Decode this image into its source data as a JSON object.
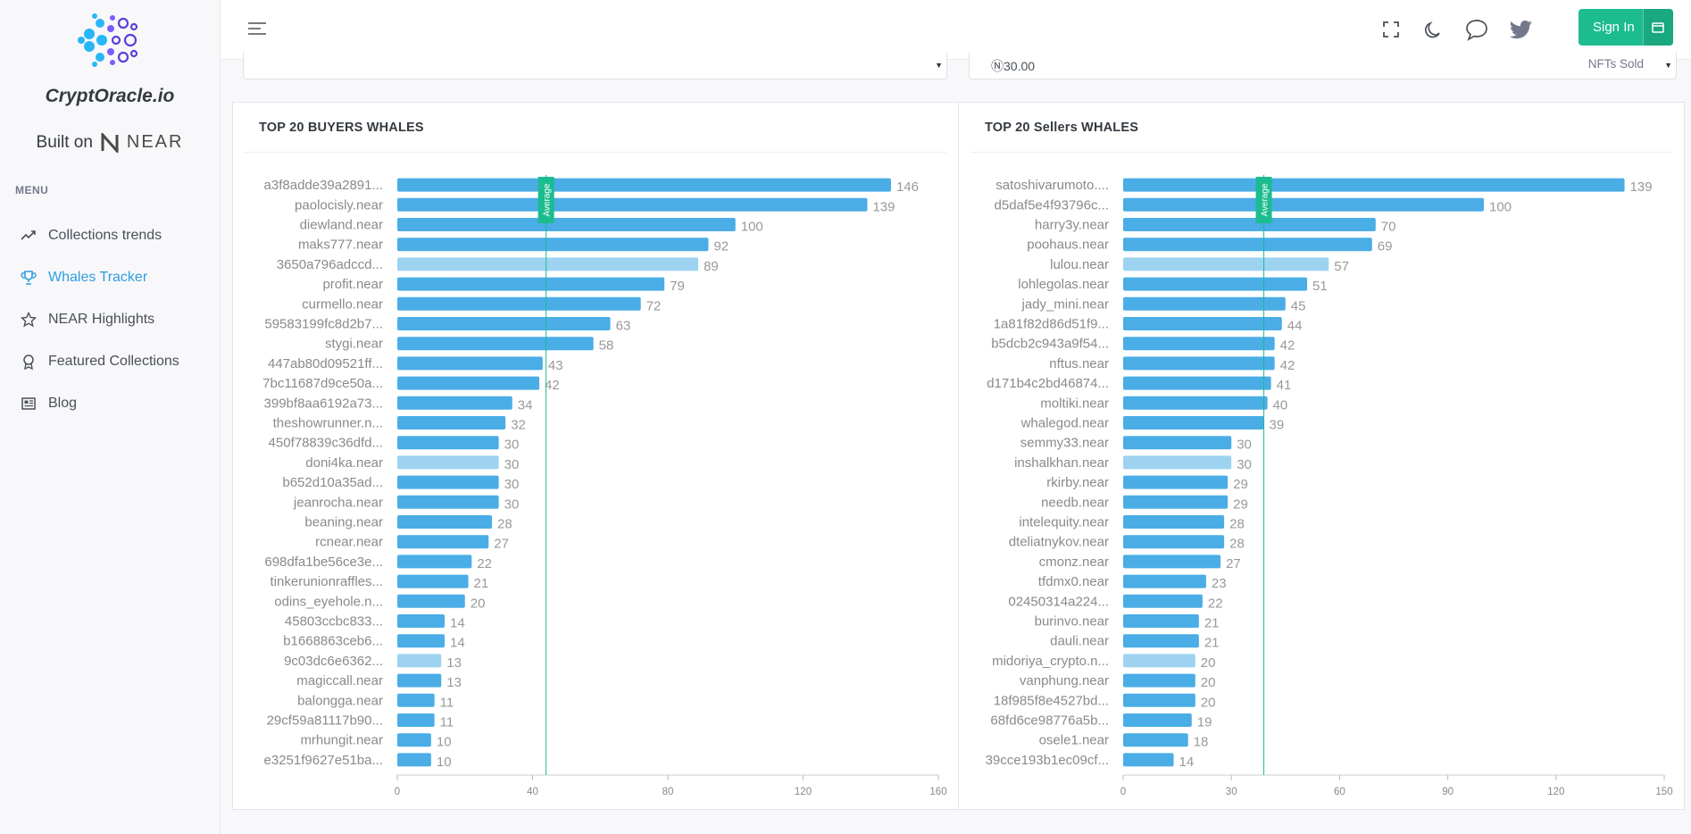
{
  "brand": {
    "name": "CryptOracle.io",
    "built_on": "Built on",
    "near_logo_text": "NEAR"
  },
  "menu": {
    "title": "MENU",
    "items": [
      {
        "label": "Collections trends",
        "icon": "trend-icon",
        "active": false
      },
      {
        "label": "Whales Tracker",
        "icon": "trophy-icon",
        "active": true
      },
      {
        "label": "NEAR Highlights",
        "icon": "star-icon",
        "active": false
      },
      {
        "label": "Featured Collections",
        "icon": "award-icon",
        "active": false
      },
      {
        "label": "Blog",
        "icon": "newspaper-icon",
        "active": false
      }
    ]
  },
  "topbar": {
    "signin_label": "Sign In"
  },
  "filters": {
    "right_value": "Ⓝ30.00",
    "right_select": "NFTs Sold"
  },
  "colors": {
    "bar": "#4aade6",
    "bar_highlight": "#9dd3f1",
    "average": "#1cbc8f",
    "accent": "#2f9ede"
  },
  "chart_data": [
    {
      "type": "bar",
      "orientation": "horizontal",
      "title": "TOP 20 BUYERS WHALES",
      "average_label": "Average",
      "average_value": 44,
      "xlim": [
        0,
        160
      ],
      "xticks": [
        0,
        40,
        80,
        120,
        160
      ],
      "highlighted": [
        4,
        14,
        24
      ],
      "categories": [
        "a3f8adde39a2891...",
        "paolocisly.near",
        "diewland.near",
        "maks777.near",
        "3650a796adccd...",
        "profit.near",
        "curmello.near",
        "59583199fc8d2b7...",
        "stygi.near",
        "447ab80d09521ff...",
        "7bc11687d9ce50a...",
        "399bf8aa6192a73...",
        "theshowrunner.n...",
        "450f78839c36dfd...",
        "doni4ka.near",
        "b652d10a35ad...",
        "jeanrocha.near",
        "beaning.near",
        "rcnear.near",
        "698dfa1be56ce3e...",
        "tinkerunionraffles...",
        "odins_eyehole.n...",
        "45803ccbc833...",
        "b1668863ceb6...",
        "9c03dc6e6362...",
        "magiccall.near",
        "balongga.near",
        "29cf59a81117b90...",
        "mrhungit.near",
        "e3251f9627e51ba..."
      ],
      "values": [
        146,
        139,
        100,
        92,
        89,
        79,
        72,
        63,
        58,
        43,
        42,
        34,
        32,
        30,
        30,
        30,
        30,
        28,
        27,
        22,
        21,
        20,
        14,
        14,
        13,
        13,
        11,
        11,
        10,
        10
      ]
    },
    {
      "type": "bar",
      "orientation": "horizontal",
      "title": "TOP 20 Sellers WHALES",
      "average_label": "Average",
      "average_value": 39,
      "xlim": [
        0,
        150
      ],
      "xticks": [
        0,
        30,
        60,
        90,
        120,
        150
      ],
      "highlighted": [
        4,
        14,
        24
      ],
      "categories": [
        "satoshivarumoto....",
        "d5daf5e4f93796c...",
        "harry3y.near",
        "poohaus.near",
        "lulou.near",
        "lohlegolas.near",
        "jady_mini.near",
        "1a81f82d86d51f9...",
        "b5dcb2c943a9f54...",
        "nftus.near",
        "d171b4c2bd46874...",
        "moltiki.near",
        "whalegod.near",
        "semmy33.near",
        "inshalkhan.near",
        "rkirby.near",
        "needb.near",
        "intelequity.near",
        "dteliatnykov.near",
        "cmonz.near",
        "tfdmx0.near",
        "02450314a224...",
        "burinvo.near",
        "dauli.near",
        "midoriya_crypto.n...",
        "vanphung.near",
        "18f985f8e4527bd...",
        "68fd6ce98776a5b...",
        "osele1.near",
        "39cce193b1ec09cf..."
      ],
      "values": [
        139,
        100,
        70,
        69,
        57,
        51,
        45,
        44,
        42,
        42,
        41,
        40,
        39,
        30,
        30,
        29,
        29,
        28,
        28,
        27,
        23,
        22,
        21,
        21,
        20,
        20,
        20,
        19,
        18,
        14
      ]
    }
  ]
}
